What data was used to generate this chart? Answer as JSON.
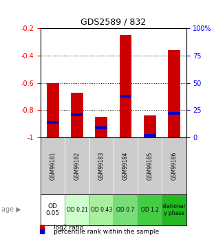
{
  "title": "GDS2589 / 832",
  "samples": [
    "GSM99181",
    "GSM99182",
    "GSM99183",
    "GSM99184",
    "GSM99185",
    "GSM99186"
  ],
  "log2_ratio": [
    -0.6,
    -0.67,
    -0.85,
    -0.25,
    -0.84,
    -0.36
  ],
  "percentile_rank": [
    0.14,
    0.21,
    0.09,
    0.38,
    0.02,
    0.22
  ],
  "bar_bottom": -1.0,
  "ylim": [
    -1.0,
    -0.2
  ],
  "yticks": [
    -1.0,
    -0.8,
    -0.6,
    -0.4,
    -0.2
  ],
  "ytick_labels": [
    "-1",
    "-0.8",
    "-0.6",
    "-0.4",
    "-0.2"
  ],
  "right_ytick_pcts": [
    0.0,
    0.25,
    0.5,
    0.75,
    1.0
  ],
  "right_ytick_labels": [
    "0",
    "25",
    "50",
    "75",
    "100%"
  ],
  "age_labels": [
    "OD\n0.05",
    "OD 0.21",
    "OD 0.43",
    "OD 0.7",
    "OD 1.2",
    "stationar\ny phase"
  ],
  "age_colors": [
    "#ffffff",
    "#ccffcc",
    "#aaeea0",
    "#77dd77",
    "#44cc44",
    "#22bb22"
  ],
  "sample_bg_color": "#cccccc",
  "bar_color": "#cc0000",
  "percentile_color": "#0000cc",
  "bar_width": 0.5,
  "grid_lines": [
    -0.4,
    -0.6,
    -0.8
  ]
}
